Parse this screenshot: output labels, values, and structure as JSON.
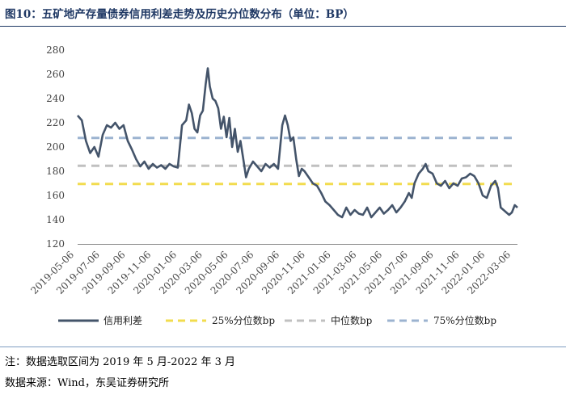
{
  "header": {
    "title": "图10：五矿地产存量债券信用利差走势及历史分位数分布（单位：BP）"
  },
  "footer": {
    "note": "注：数据选取区间为 2019 年 5 月-2022 年 3 月",
    "source": "数据来源：Wind，东吴证券研究所"
  },
  "chart_data": {
    "type": "line",
    "title": "五矿地产存量债券信用利差走势及历史分位数分布（单位：BP）",
    "ylim": [
      120,
      280
    ],
    "yticks": [
      120,
      140,
      160,
      180,
      200,
      220,
      240,
      260,
      280
    ],
    "categories": [
      "2019-05-06",
      "2019-07-06",
      "2019-09-06",
      "2019-11-06",
      "2020-01-06",
      "2020-03-06",
      "2020-05-06",
      "2020-07-06",
      "2020-09-06",
      "2020-11-06",
      "2021-01-06",
      "2021-03-06",
      "2021-05-06",
      "2021-07-06",
      "2021-09-06",
      "2021-11-06",
      "2022-01-06",
      "2022-03-06"
    ],
    "series": [
      {
        "name": "信用利差",
        "kind": "line",
        "color": "#44546a",
        "values": [
          [
            0,
            226
          ],
          [
            0.3,
            222
          ],
          [
            0.6,
            205
          ],
          [
            0.9,
            195
          ],
          [
            1.2,
            200
          ],
          [
            1.5,
            192
          ],
          [
            1.8,
            210
          ],
          [
            2.1,
            218
          ],
          [
            2.4,
            216
          ],
          [
            2.7,
            220
          ],
          [
            3.0,
            215
          ],
          [
            3.3,
            218
          ],
          [
            3.6,
            205
          ],
          [
            3.9,
            198
          ],
          [
            4.2,
            190
          ],
          [
            4.5,
            184
          ],
          [
            4.8,
            188
          ],
          [
            5.1,
            182
          ],
          [
            5.4,
            186
          ],
          [
            5.7,
            183
          ],
          [
            6.0,
            185
          ],
          [
            6.3,
            182
          ],
          [
            6.6,
            186
          ],
          [
            6.9,
            184
          ],
          [
            7.2,
            183
          ],
          [
            7.5,
            218
          ],
          [
            7.8,
            222
          ],
          [
            8.0,
            235
          ],
          [
            8.2,
            228
          ],
          [
            8.4,
            215
          ],
          [
            8.6,
            212
          ],
          [
            8.8,
            226
          ],
          [
            9.0,
            230
          ],
          [
            9.2,
            252
          ],
          [
            9.35,
            265
          ],
          [
            9.5,
            250
          ],
          [
            9.7,
            240
          ],
          [
            9.9,
            238
          ],
          [
            10.1,
            232
          ],
          [
            10.3,
            215
          ],
          [
            10.5,
            225
          ],
          [
            10.7,
            208
          ],
          [
            10.9,
            224
          ],
          [
            11.1,
            200
          ],
          [
            11.3,
            215
          ],
          [
            11.5,
            196
          ],
          [
            11.7,
            205
          ],
          [
            11.9,
            190
          ],
          [
            12.1,
            175
          ],
          [
            12.3,
            182
          ],
          [
            12.6,
            188
          ],
          [
            12.9,
            184
          ],
          [
            13.2,
            180
          ],
          [
            13.5,
            186
          ],
          [
            13.8,
            183
          ],
          [
            14.1,
            186
          ],
          [
            14.4,
            182
          ],
          [
            14.7,
            218
          ],
          [
            14.9,
            226
          ],
          [
            15.1,
            218
          ],
          [
            15.3,
            205
          ],
          [
            15.5,
            208
          ],
          [
            15.7,
            190
          ],
          [
            15.9,
            176
          ],
          [
            16.1,
            182
          ],
          [
            16.3,
            180
          ],
          [
            16.6,
            175
          ],
          [
            16.9,
            170
          ],
          [
            17.2,
            168
          ],
          [
            17.5,
            162
          ],
          [
            17.8,
            155
          ],
          [
            18.1,
            152
          ],
          [
            18.4,
            148
          ],
          [
            18.7,
            144
          ],
          [
            19.0,
            142
          ],
          [
            19.3,
            150
          ],
          [
            19.6,
            144
          ],
          [
            19.9,
            148
          ],
          [
            20.2,
            145
          ],
          [
            20.5,
            144
          ],
          [
            20.8,
            150
          ],
          [
            21.1,
            142
          ],
          [
            21.4,
            146
          ],
          [
            21.7,
            150
          ],
          [
            22.0,
            145
          ],
          [
            22.3,
            148
          ],
          [
            22.6,
            152
          ],
          [
            22.9,
            146
          ],
          [
            23.2,
            150
          ],
          [
            23.5,
            155
          ],
          [
            23.8,
            162
          ],
          [
            24.0,
            158
          ],
          [
            24.2,
            170
          ],
          [
            24.5,
            178
          ],
          [
            24.8,
            182
          ],
          [
            25.0,
            186
          ],
          [
            25.2,
            180
          ],
          [
            25.5,
            178
          ],
          [
            25.8,
            170
          ],
          [
            26.1,
            168
          ],
          [
            26.4,
            172
          ],
          [
            26.7,
            166
          ],
          [
            27.0,
            170
          ],
          [
            27.3,
            168
          ],
          [
            27.6,
            174
          ],
          [
            27.9,
            175
          ],
          [
            28.2,
            178
          ],
          [
            28.5,
            176
          ],
          [
            28.8,
            170
          ],
          [
            29.1,
            160
          ],
          [
            29.4,
            158
          ],
          [
            29.7,
            168
          ],
          [
            30.0,
            172
          ],
          [
            30.2,
            166
          ],
          [
            30.4,
            150
          ],
          [
            30.6,
            148
          ],
          [
            30.8,
            146
          ],
          [
            31.0,
            144
          ],
          [
            31.2,
            146
          ],
          [
            31.4,
            152
          ],
          [
            31.6,
            150
          ]
        ]
      },
      {
        "name": "25%分位数bp",
        "kind": "hline",
        "value": 169.5,
        "color": "#f2dc4e"
      },
      {
        "name": "中位数bp",
        "kind": "hline",
        "value": 184.5,
        "color": "#c0c0c0"
      },
      {
        "name": "75%分位数bp",
        "kind": "hline",
        "value": 207.5,
        "color": "#9cb3d0"
      }
    ],
    "x_index_max": 31.6
  }
}
